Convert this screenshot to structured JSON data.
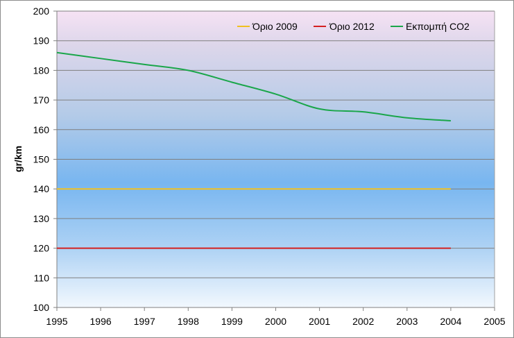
{
  "chart_data": {
    "type": "line",
    "title": "",
    "xlabel": "",
    "ylabel": "gr/km",
    "xlim": [
      1995,
      2005
    ],
    "ylim": [
      100,
      200
    ],
    "x_ticks": [
      "1995",
      "1996",
      "1997",
      "1998",
      "1999",
      "2000",
      "2001",
      "2002",
      "2003",
      "2004",
      "2005"
    ],
    "y_ticks": [
      "100",
      "110",
      "120",
      "130",
      "140",
      "150",
      "160",
      "170",
      "180",
      "190",
      "200"
    ],
    "grid": true,
    "legend_position": "top-right",
    "series": [
      {
        "name": "Όριο 2009",
        "color": "#f0c020",
        "x": [
          1995,
          2004
        ],
        "values": [
          140,
          140
        ]
      },
      {
        "name": "Όριο 2012",
        "color": "#d42020",
        "x": [
          1995,
          2004
        ],
        "values": [
          120,
          120
        ]
      },
      {
        "name": "Εκπομπή CO2",
        "color": "#1aa64a",
        "x": [
          1995,
          1996,
          1997,
          1998,
          1999,
          2000,
          2001,
          2002,
          2003,
          2004
        ],
        "values": [
          186,
          184,
          182,
          180,
          176,
          172,
          167,
          166,
          164,
          163
        ]
      }
    ]
  }
}
